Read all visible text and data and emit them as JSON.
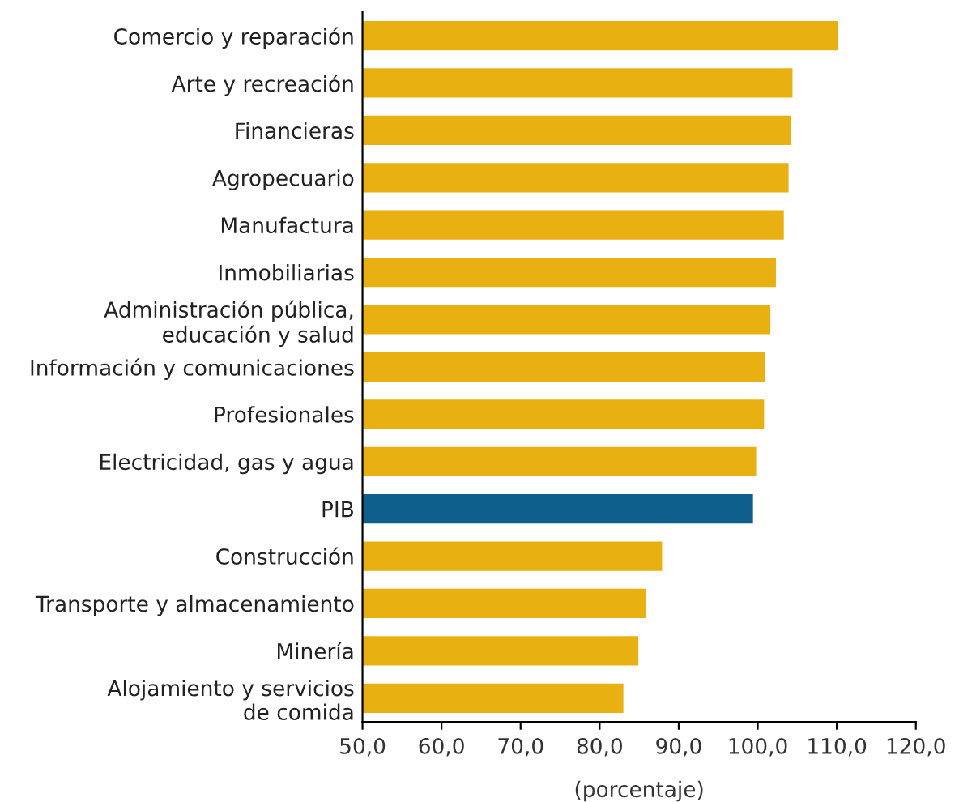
{
  "chart_data": {
    "type": "bar",
    "orientation": "horizontal",
    "xlabel": "(porcentaje)",
    "categories": [
      "Comercio y reparación",
      "Arte y recreación",
      "Financieras",
      "Agropecuario",
      "Manufactura",
      "Inmobiliarias",
      "Administración pública,\neducación y salud",
      "Información y comunicaciones",
      "Profesionales",
      "Electricidad, gas y agua",
      "PIB",
      "Construcción",
      "Transporte y almacenamiento",
      "Minería",
      "Alojamiento y servicios\nde comida"
    ],
    "values": [
      110.1,
      104.4,
      104.2,
      103.9,
      103.3,
      102.3,
      101.6,
      100.9,
      100.8,
      99.8,
      99.4,
      87.9,
      85.8,
      84.9,
      83.0
    ],
    "colors": [
      "#e9b011",
      "#e9b011",
      "#e9b011",
      "#e9b011",
      "#e9b011",
      "#e9b011",
      "#e9b011",
      "#e9b011",
      "#e9b011",
      "#e9b011",
      "#0f5f8c",
      "#e9b011",
      "#e9b011",
      "#e9b011",
      "#e9b011"
    ],
    "xlim": [
      50,
      120
    ],
    "xticks": [
      {
        "value": 50,
        "label": "50,0"
      },
      {
        "value": 60,
        "label": "60,0"
      },
      {
        "value": 70,
        "label": "70,0"
      },
      {
        "value": 80,
        "label": "80,0"
      },
      {
        "value": 90,
        "label": "90,0"
      },
      {
        "value": 100,
        "label": "100,0"
      },
      {
        "value": 110,
        "label": "110,0"
      },
      {
        "value": 120,
        "label": "120,0"
      }
    ],
    "grid": false,
    "legend": false
  }
}
